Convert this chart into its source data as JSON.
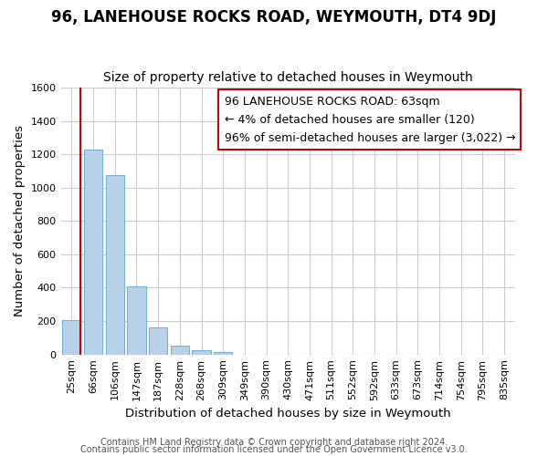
{
  "title": "96, LANEHOUSE ROCKS ROAD, WEYMOUTH, DT4 9DJ",
  "subtitle": "Size of property relative to detached houses in Weymouth",
  "xlabel": "Distribution of detached houses by size in Weymouth",
  "ylabel": "Number of detached properties",
  "bar_labels": [
    "25sqm",
    "66sqm",
    "106sqm",
    "147sqm",
    "187sqm",
    "228sqm",
    "268sqm",
    "309sqm",
    "349sqm",
    "390sqm",
    "430sqm",
    "471sqm",
    "511sqm",
    "552sqm",
    "592sqm",
    "633sqm",
    "673sqm",
    "714sqm",
    "754sqm",
    "795sqm",
    "835sqm"
  ],
  "bar_values": [
    207,
    1230,
    1075,
    410,
    160,
    55,
    25,
    17,
    0,
    0,
    0,
    0,
    0,
    0,
    0,
    0,
    0,
    0,
    0,
    0,
    0
  ],
  "bar_color": "#b8d0e8",
  "bar_edge_color": "#7aafd4",
  "highlight_color": "#cc0000",
  "red_line_x": 0.42,
  "ylim": [
    0,
    1600
  ],
  "yticks": [
    0,
    200,
    400,
    600,
    800,
    1000,
    1200,
    1400,
    1600
  ],
  "annotation_text": "96 LANEHOUSE ROCKS ROAD: 63sqm\n← 4% of detached houses are smaller (120)\n96% of semi-detached houses are larger (3,022) →",
  "footer1": "Contains HM Land Registry data © Crown copyright and database right 2024.",
  "footer2": "Contains public sector information licensed under the Open Government Licence v3.0.",
  "title_fontsize": 12,
  "subtitle_fontsize": 10,
  "axis_label_fontsize": 9.5,
  "tick_fontsize": 8,
  "annotation_fontsize": 9,
  "footer_fontsize": 7
}
